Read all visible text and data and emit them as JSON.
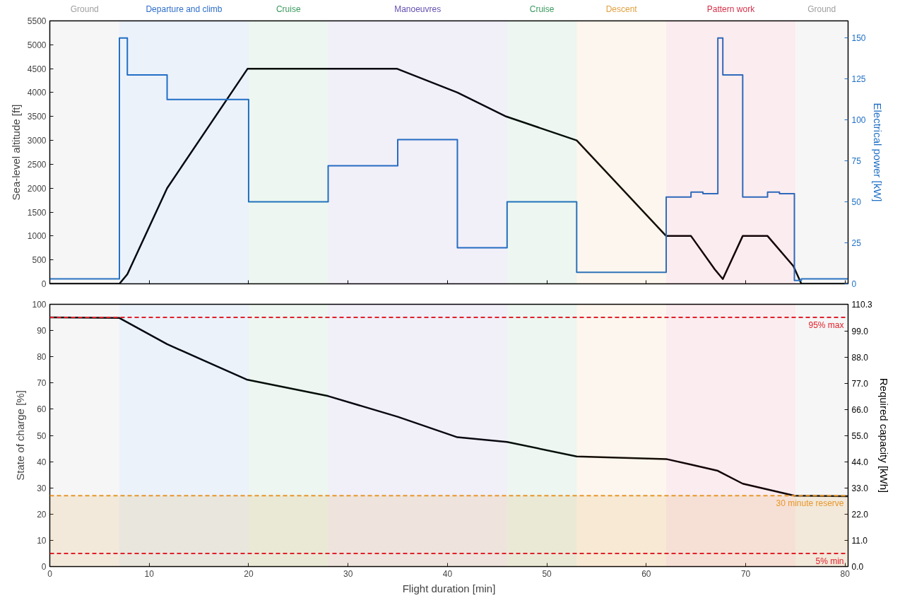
{
  "chart_data": [
    {
      "type": "line",
      "ylabel": "Sea-level altitude [ft]",
      "y2label": "Electrical power [kW]",
      "xlim": [
        0,
        80.3
      ],
      "xticks": [
        0,
        10,
        20,
        30,
        40,
        50,
        60,
        70,
        80
      ],
      "ylim": [
        0,
        5500
      ],
      "yticks": [
        0,
        500,
        1000,
        1500,
        2000,
        2500,
        3000,
        3500,
        4000,
        4500,
        5000,
        5500
      ],
      "y2lim": [
        0,
        160.5
      ],
      "y2ticks": [
        0,
        25,
        50,
        75,
        100,
        125,
        150
      ],
      "tick_labels": "y",
      "grid": false,
      "bands": [
        {
          "axis": "x",
          "from": 0,
          "to": 7,
          "label": "Ground",
          "color": "#a0a0a0"
        },
        {
          "axis": "x",
          "from": 7,
          "to": 20,
          "label": "Departure and climb",
          "color": "#2f6fc9"
        },
        {
          "axis": "x",
          "from": 20,
          "to": 28,
          "label": "Cruise",
          "color": "#3a9a5e"
        },
        {
          "axis": "x",
          "from": 28,
          "to": 46,
          "label": "Manoeuvres",
          "color": "#6650b0"
        },
        {
          "axis": "x",
          "from": 46,
          "to": 53,
          "label": "Cruise",
          "color": "#3a9a5e"
        },
        {
          "axis": "x",
          "from": 53,
          "to": 62,
          "label": "Descent",
          "color": "#e0a040"
        },
        {
          "axis": "x",
          "from": 62,
          "to": 75,
          "label": "Pattern work",
          "color": "#d6304a"
        },
        {
          "axis": "x",
          "from": 75,
          "to": 80.3,
          "label": "Ground",
          "color": "#a0a0a0"
        }
      ],
      "series": [
        {
          "color": "#000000",
          "x": [
            0,
            7,
            7.8,
            11.8,
            19.9,
            34.9,
            41,
            45.9,
            53,
            62,
            64.5,
            66.9,
            67.7,
            69.7,
            72.2,
            74.8,
            75.6,
            80.3
          ],
          "values": [
            0,
            0,
            200,
            2000,
            4500,
            4500,
            4000,
            3500,
            3000,
            1000,
            1000,
            300,
            100,
            1000,
            1000,
            370,
            0,
            0
          ]
        },
        {
          "type": "step",
          "axis": "y2",
          "color": "#1f6fc5",
          "x": [
            0,
            7,
            7.8,
            11.8,
            20,
            28,
            35,
            41,
            46,
            53,
            62,
            64.5,
            65.7,
            67.2,
            67.7,
            69.7,
            72.2,
            73.4,
            74.9,
            75.6,
            80.3
          ],
          "values": [
            3,
            150,
            127.5,
            112.5,
            50,
            72,
            88,
            22,
            50,
            7,
            53,
            56,
            55,
            150,
            127.5,
            53,
            56,
            55,
            2,
            3,
            3
          ]
        }
      ]
    },
    {
      "type": "line",
      "xlabel": "Flight duration [min]",
      "ylabel": "State of charge [%]",
      "y2label": "Required capacity [kWh]",
      "xlim": [
        0,
        80.3
      ],
      "xticks": [
        0,
        10,
        20,
        30,
        40,
        50,
        60,
        70,
        80
      ],
      "ylim": [
        0,
        100
      ],
      "yticks": [
        0,
        10,
        20,
        30,
        40,
        50,
        60,
        70,
        80,
        90,
        100
      ],
      "y2lim": [
        0,
        110.3
      ],
      "y2ticks": [
        {
          "value": 0,
          "label": "0.0"
        },
        {
          "value": 11,
          "label": "11.0"
        },
        {
          "value": 22,
          "label": "22.0"
        },
        {
          "value": 33,
          "label": "33.0"
        },
        {
          "value": 44,
          "label": "44.0"
        },
        {
          "value": 55,
          "label": "55.0"
        },
        {
          "value": 66,
          "label": "66.0"
        },
        {
          "value": 77,
          "label": "77.0"
        },
        {
          "value": 88,
          "label": "88.0"
        },
        {
          "value": 99,
          "label": "99.0"
        },
        110.3
      ],
      "grid": false,
      "bands": [
        {
          "axis": "x",
          "from": 0,
          "to": 7,
          "color": "#a0a0a0"
        },
        {
          "axis": "x",
          "from": 7,
          "to": 20,
          "color": "#2f6fc9"
        },
        {
          "axis": "x",
          "from": 20,
          "to": 28,
          "color": "#3a9a5e"
        },
        {
          "axis": "x",
          "from": 28,
          "to": 46,
          "color": "#6650b0"
        },
        {
          "axis": "x",
          "from": 46,
          "to": 53,
          "color": "#3a9a5e"
        },
        {
          "axis": "x",
          "from": 53,
          "to": 62,
          "color": "#e0a040"
        },
        {
          "axis": "x",
          "from": 62,
          "to": 75,
          "color": "#d6304a"
        },
        {
          "axis": "x",
          "from": 75,
          "to": 80.3,
          "color": "#a0a0a0"
        },
        {
          "axis": "y",
          "from": 0,
          "to": 27,
          "color": "#e0a040"
        }
      ],
      "ref_lines": [
        {
          "axis": "y",
          "value": 95,
          "label": "95% max",
          "color": "#e0202a",
          "line_style": "dashed"
        },
        {
          "axis": "y",
          "value": 27,
          "label": "30 minute reserve",
          "color": "#e8962a",
          "line_style": "dashed"
        },
        {
          "axis": "y",
          "value": 5,
          "label": "5% min",
          "color": "#e0202a",
          "line_style": "dashed"
        }
      ],
      "series": [
        {
          "color": "#000000",
          "x": [
            0,
            7,
            11.8,
            19.8,
            28,
            35,
            41,
            46,
            53,
            62,
            64.5,
            67.2,
            69.7,
            74.9,
            80.3
          ],
          "values": [
            95,
            94.8,
            84.8,
            71.3,
            65,
            57.1,
            49.3,
            47.5,
            42,
            41,
            38.9,
            36.5,
            31.6,
            27,
            26.8
          ]
        }
      ]
    }
  ]
}
